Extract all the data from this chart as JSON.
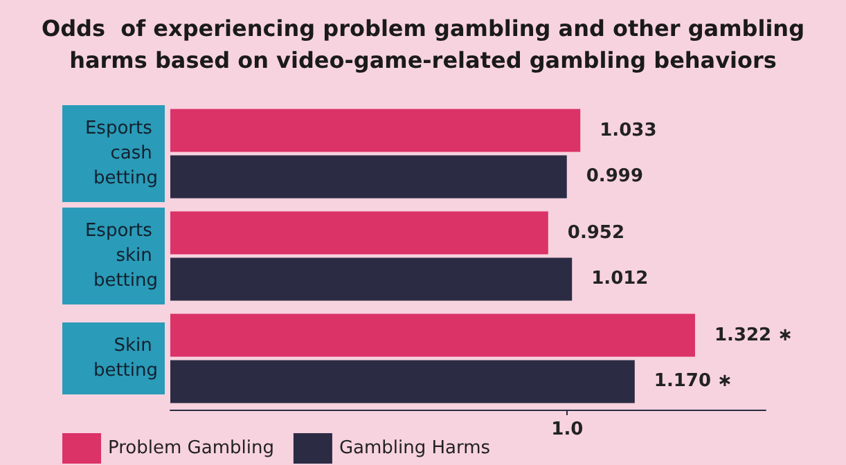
{
  "chart_data": {
    "type": "bar",
    "orientation": "horizontal",
    "title": "Odds  of experiencing problem gambling and other gambling\nharms based on video-game-related gambling behaviors",
    "categories": [
      "Esports cash betting",
      "Esports skin betting",
      "Skin betting"
    ],
    "series": [
      {
        "name": "Problem Gambling",
        "color": "#db3268",
        "values": [
          1.033,
          0.952,
          1.322
        ],
        "value_labels": [
          "1.033",
          "0.952",
          "1.322 ∗"
        ]
      },
      {
        "name": "Gambling Harms",
        "color": "#2b2c44",
        "values": [
          0.999,
          1.012,
          1.17
        ],
        "value_labels": [
          "0.999",
          "1.012",
          "1.170 ∗"
        ]
      }
    ],
    "xlim": [
      0,
      1.5
    ],
    "xticks": [
      {
        "value": 1,
        "label": "1.0"
      }
    ],
    "grid": false,
    "legend": "bottom left"
  }
}
